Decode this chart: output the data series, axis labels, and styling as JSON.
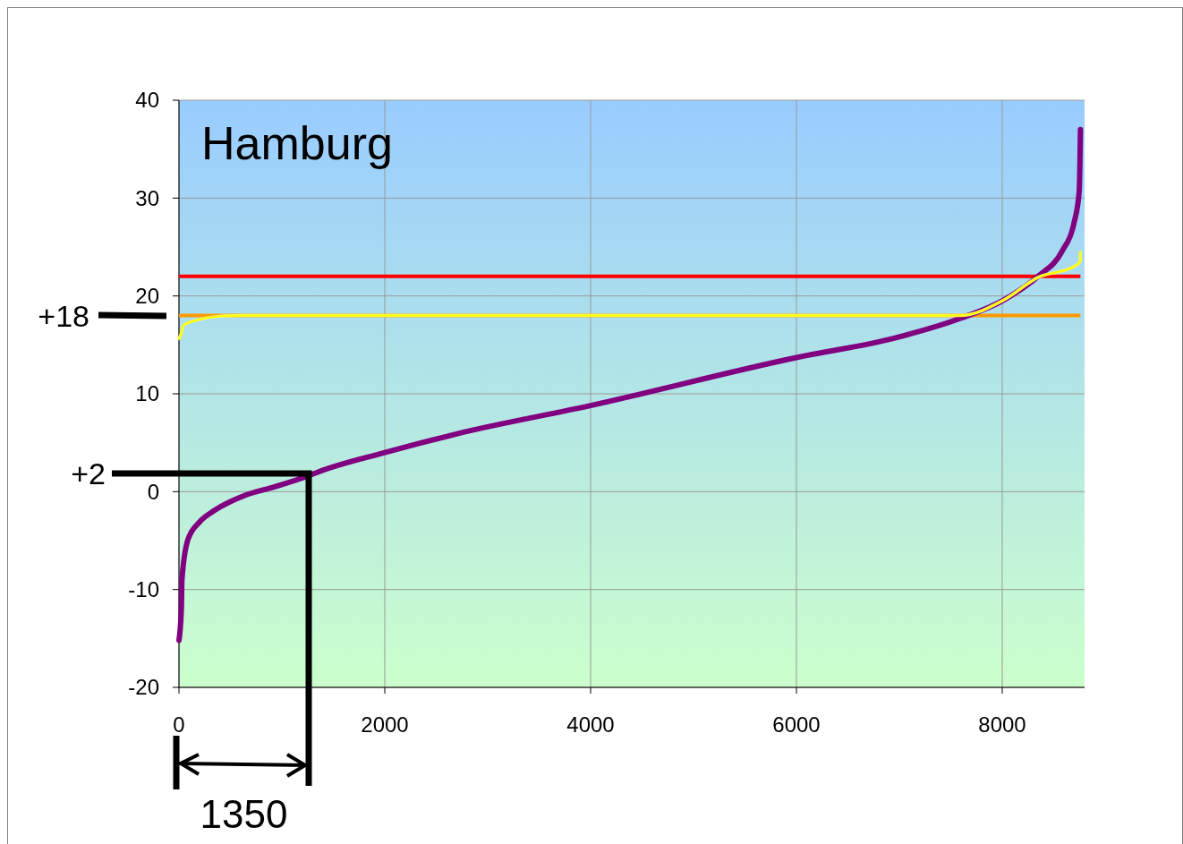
{
  "chart_data": {
    "type": "line",
    "title": "Hamburg",
    "xlim": [
      0,
      8800
    ],
    "xticks": [
      0,
      2000,
      4000,
      6000,
      8000
    ],
    "ylim": [
      -20,
      40
    ],
    "yticks": [
      -20,
      -10,
      0,
      10,
      20,
      30,
      40
    ],
    "grid": true,
    "marker": "none",
    "line_style": "solid",
    "series": [
      {
        "color": "#800080",
        "x": [
          0,
          23,
          29,
          87,
          200,
          348,
          635,
          930,
          1278,
          1350,
          2000,
          2696,
          4000,
          6000,
          6957,
          7591,
          8017,
          8348,
          8583,
          8696,
          8748,
          8760
        ],
        "values": [
          -15.2,
          -12,
          -9,
          -4.9,
          -3.1,
          -1.9,
          -0.4,
          0.5,
          1.7,
          2,
          4,
          5.9,
          8.8,
          13.7,
          15.7,
          17.7,
          19.6,
          22,
          24.6,
          27.4,
          30.7,
          37
        ]
      },
      {
        "color": "#ffff00",
        "x": [
          0,
          23,
          43,
          200,
          374,
          600,
          7591,
          8017,
          8348,
          8696,
          8757,
          8760
        ],
        "values": [
          15.6,
          16.2,
          17,
          17.6,
          17.9,
          18,
          18,
          19.6,
          21.9,
          23,
          23.5,
          24.5
        ]
      }
    ],
    "ref_lines": [
      {
        "axis": "y",
        "value": 22,
        "color": "#ff0000"
      },
      {
        "axis": "y",
        "value": 18,
        "color": "#ff9900"
      }
    ],
    "annotations": [
      "+18",
      "+2",
      "1350"
    ]
  }
}
